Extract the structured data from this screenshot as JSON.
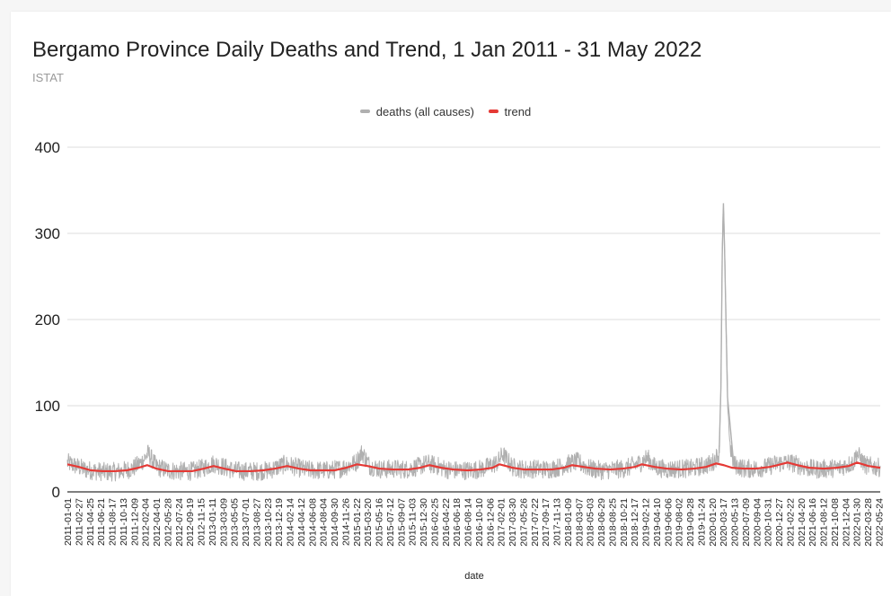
{
  "chart_data": {
    "type": "line",
    "title": "Bergamo Province Daily Deaths and Trend, 1 Jan 2011 - 31 May 2022",
    "subtitle": "ISTAT",
    "xlabel": "date",
    "ylabel": "",
    "ylim": [
      0,
      400
    ],
    "yticks": [
      0,
      100,
      200,
      300,
      400
    ],
    "xlim": [
      "2011-01-01",
      "2022-05-31"
    ],
    "grid": true,
    "legend_position": "top",
    "xtick_labels": [
      "2011-01-01",
      "2011-02-27",
      "2011-04-25",
      "2011-06-21",
      "2011-08-17",
      "2011-10-13",
      "2011-12-09",
      "2012-02-04",
      "2012-04-01",
      "2012-05-28",
      "2012-07-24",
      "2012-09-19",
      "2012-11-15",
      "2013-01-11",
      "2013-03-09",
      "2013-05-05",
      "2013-07-01",
      "2013-08-27",
      "2013-10-23",
      "2013-12-19",
      "2014-02-14",
      "2014-04-12",
      "2014-06-08",
      "2014-08-04",
      "2014-09-30",
      "2014-11-26",
      "2015-01-22",
      "2015-03-20",
      "2015-05-16",
      "2015-07-12",
      "2015-09-07",
      "2015-11-03",
      "2015-12-30",
      "2016-02-25",
      "2016-04-22",
      "2016-06-18",
      "2016-08-14",
      "2016-10-10",
      "2016-12-06",
      "2017-02-01",
      "2017-03-30",
      "2017-05-26",
      "2017-07-22",
      "2017-09-17",
      "2017-11-13",
      "2018-01-09",
      "2018-03-07",
      "2018-05-03",
      "2018-06-29",
      "2018-08-25",
      "2018-10-21",
      "2018-12-17",
      "2019-02-12",
      "2019-04-10",
      "2019-06-06",
      "2019-08-02",
      "2019-09-28",
      "2019-11-24",
      "2020-01-20",
      "2020-03-17",
      "2020-05-13",
      "2020-07-09",
      "2020-09-04",
      "2020-10-31",
      "2020-12-27",
      "2021-02-22",
      "2021-04-20",
      "2021-06-16",
      "2021-08-12",
      "2021-10-08",
      "2021-12-04",
      "2022-01-30",
      "2022-03-28",
      "2022-05-24"
    ],
    "series": [
      {
        "name": "deaths (all causes)",
        "color": "#b0b0b0",
        "description_type": "daily",
        "points": [
          [
            "2011-01-01",
            34
          ],
          [
            "2011-02-15",
            30
          ],
          [
            "2011-04-01",
            26
          ],
          [
            "2011-06-01",
            24
          ],
          [
            "2011-08-01",
            23
          ],
          [
            "2011-10-01",
            24
          ],
          [
            "2011-12-01",
            27
          ],
          [
            "2012-01-15",
            34
          ],
          [
            "2012-02-20",
            45
          ],
          [
            "2012-04-01",
            29
          ],
          [
            "2012-06-01",
            25
          ],
          [
            "2012-08-01",
            24
          ],
          [
            "2012-10-01",
            24
          ],
          [
            "2012-12-01",
            28
          ],
          [
            "2013-01-20",
            33
          ],
          [
            "2013-03-01",
            30
          ],
          [
            "2013-05-01",
            25
          ],
          [
            "2013-07-01",
            24
          ],
          [
            "2013-09-01",
            24
          ],
          [
            "2013-11-01",
            25
          ],
          [
            "2014-01-20",
            32
          ],
          [
            "2014-03-01",
            30
          ],
          [
            "2014-05-01",
            26
          ],
          [
            "2014-07-01",
            25
          ],
          [
            "2014-09-01",
            25
          ],
          [
            "2014-11-01",
            27
          ],
          [
            "2015-01-20",
            34
          ],
          [
            "2015-02-20",
            46
          ],
          [
            "2015-04-01",
            30
          ],
          [
            "2015-06-01",
            26
          ],
          [
            "2015-08-01",
            27
          ],
          [
            "2015-10-01",
            26
          ],
          [
            "2015-12-01",
            29
          ],
          [
            "2016-01-20",
            33
          ],
          [
            "2016-03-01",
            31
          ],
          [
            "2016-05-01",
            26
          ],
          [
            "2016-07-01",
            25
          ],
          [
            "2016-09-01",
            25
          ],
          [
            "2016-11-01",
            27
          ],
          [
            "2017-01-15",
            34
          ],
          [
            "2017-02-10",
            44
          ],
          [
            "2017-04-01",
            29
          ],
          [
            "2017-06-01",
            26
          ],
          [
            "2017-08-01",
            27
          ],
          [
            "2017-10-01",
            26
          ],
          [
            "2017-12-01",
            29
          ],
          [
            "2018-01-20",
            33
          ],
          [
            "2018-03-01",
            35
          ],
          [
            "2018-05-01",
            27
          ],
          [
            "2018-07-01",
            25
          ],
          [
            "2018-09-01",
            26
          ],
          [
            "2018-11-01",
            27
          ],
          [
            "2019-01-20",
            34
          ],
          [
            "2019-02-20",
            40
          ],
          [
            "2019-04-01",
            29
          ],
          [
            "2019-06-01",
            26
          ],
          [
            "2019-08-01",
            27
          ],
          [
            "2019-10-01",
            27
          ],
          [
            "2019-12-01",
            30
          ],
          [
            "2020-01-20",
            33
          ],
          [
            "2020-02-25",
            45
          ],
          [
            "2020-03-05",
            120
          ],
          [
            "2020-03-12",
            275
          ],
          [
            "2020-03-18",
            335
          ],
          [
            "2020-03-24",
            280
          ],
          [
            "2020-03-31",
            200
          ],
          [
            "2020-04-08",
            110
          ],
          [
            "2020-04-20",
            55
          ],
          [
            "2020-05-10",
            32
          ],
          [
            "2020-07-01",
            27
          ],
          [
            "2020-09-01",
            27
          ],
          [
            "2020-11-01",
            29
          ],
          [
            "2020-12-01",
            32
          ],
          [
            "2021-01-20",
            34
          ],
          [
            "2021-03-01",
            34
          ],
          [
            "2021-05-01",
            29
          ],
          [
            "2021-07-01",
            26
          ],
          [
            "2021-09-01",
            27
          ],
          [
            "2021-11-01",
            28
          ],
          [
            "2022-01-15",
            34
          ],
          [
            "2022-01-30",
            45
          ],
          [
            "2022-03-15",
            31
          ],
          [
            "2022-05-31",
            28
          ]
        ]
      },
      {
        "name": "trend",
        "color": "#e53935",
        "points": [
          [
            "2011-01-01",
            32
          ],
          [
            "2011-03-01",
            29
          ],
          [
            "2011-05-01",
            25
          ],
          [
            "2011-07-01",
            24
          ],
          [
            "2011-09-01",
            24
          ],
          [
            "2011-11-01",
            25
          ],
          [
            "2012-01-01",
            28
          ],
          [
            "2012-02-15",
            31
          ],
          [
            "2012-04-01",
            27
          ],
          [
            "2012-06-01",
            24
          ],
          [
            "2012-08-01",
            24
          ],
          [
            "2012-10-01",
            24
          ],
          [
            "2012-12-01",
            27
          ],
          [
            "2013-01-20",
            30
          ],
          [
            "2013-03-15",
            27
          ],
          [
            "2013-05-15",
            24
          ],
          [
            "2013-08-01",
            24
          ],
          [
            "2013-10-01",
            25
          ],
          [
            "2013-12-01",
            27
          ],
          [
            "2014-02-01",
            30
          ],
          [
            "2014-04-01",
            27
          ],
          [
            "2014-06-01",
            25
          ],
          [
            "2014-08-01",
            25
          ],
          [
            "2014-10-01",
            25
          ],
          [
            "2014-12-01",
            28
          ],
          [
            "2015-01-25",
            32
          ],
          [
            "2015-03-20",
            30
          ],
          [
            "2015-05-20",
            27
          ],
          [
            "2015-08-01",
            26
          ],
          [
            "2015-10-15",
            26
          ],
          [
            "2015-12-15",
            28
          ],
          [
            "2016-02-01",
            31
          ],
          [
            "2016-04-01",
            28
          ],
          [
            "2016-06-01",
            26
          ],
          [
            "2016-08-15",
            25
          ],
          [
            "2016-10-20",
            26
          ],
          [
            "2016-12-20",
            28
          ],
          [
            "2017-01-25",
            32
          ],
          [
            "2017-04-01",
            28
          ],
          [
            "2017-06-01",
            26
          ],
          [
            "2017-08-15",
            26
          ],
          [
            "2017-10-20",
            26
          ],
          [
            "2017-12-20",
            28
          ],
          [
            "2018-02-01",
            31
          ],
          [
            "2018-04-01",
            29
          ],
          [
            "2018-06-01",
            27
          ],
          [
            "2018-08-15",
            26
          ],
          [
            "2018-10-20",
            27
          ],
          [
            "2018-12-20",
            29
          ],
          [
            "2019-01-25",
            32
          ],
          [
            "2019-04-01",
            29
          ],
          [
            "2019-06-01",
            27
          ],
          [
            "2019-08-15",
            26
          ],
          [
            "2019-10-20",
            27
          ],
          [
            "2019-12-20",
            29
          ],
          [
            "2020-02-10",
            33
          ],
          [
            "2020-03-20",
            31
          ],
          [
            "2020-05-01",
            28
          ],
          [
            "2020-07-01",
            27
          ],
          [
            "2020-09-01",
            27
          ],
          [
            "2020-11-10",
            29
          ],
          [
            "2020-12-20",
            31
          ],
          [
            "2021-02-10",
            34
          ],
          [
            "2021-04-01",
            31
          ],
          [
            "2021-06-01",
            28
          ],
          [
            "2021-08-15",
            27
          ],
          [
            "2021-10-20",
            28
          ],
          [
            "2021-12-20",
            30
          ],
          [
            "2022-02-01",
            34
          ],
          [
            "2022-04-01",
            30
          ],
          [
            "2022-05-31",
            28
          ]
        ]
      }
    ]
  }
}
